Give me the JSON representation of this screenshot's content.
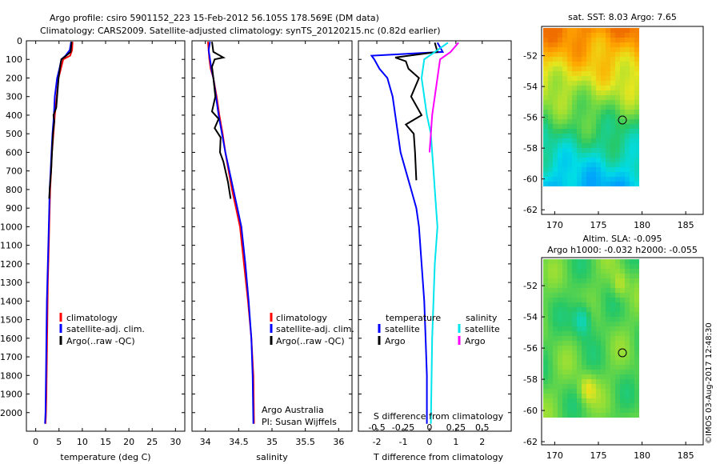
{
  "header": {
    "title_line1": "Argo profile: csiro 5901152_223 15-Feb-2012 56.105S 178.569E (DM data)",
    "title_line2": "Climatology: CARS2009. Satellite-adjusted climatology: synTS_20120215.nc (0.82d earlier)"
  },
  "colors": {
    "climatology": "#ff0000",
    "satellite": "#0000ff",
    "argo": "#000000",
    "salinity_satellite": "#00e5ee",
    "salinity_argo": "#ff00ff"
  },
  "legend_temp": {
    "climatology": "climatology",
    "satellite": "satellite-adj. clim.",
    "argo": "Argo(..raw -QC)"
  },
  "legend_diff": {
    "temperature": "temperature",
    "salinity": "salinity",
    "satellite": "satellite",
    "argo": "Argo"
  },
  "annotation": {
    "line1": "Argo Australia",
    "line2": "PI: Susan Wijffels"
  },
  "map_sst": {
    "title": "sat. SST: 8.03 Argo: 7.65"
  },
  "map_sla": {
    "title_line1": "Altim. SLA: -0.095",
    "title_line2": "Argo h1000: -0.032 h2000: -0.055"
  },
  "watermark": "©IMOS 03-Aug-2017 12:48:30",
  "chart_data": [
    {
      "type": "line",
      "xlabel": "temperature (deg C)",
      "ylabel": "",
      "xlim": [
        -2,
        32
      ],
      "ylim": [
        2100,
        0
      ],
      "xticks": [
        0,
        5,
        10,
        15,
        20,
        25,
        30
      ],
      "yticks": [
        0,
        100,
        200,
        300,
        400,
        500,
        600,
        700,
        800,
        900,
        1000,
        1100,
        1200,
        1300,
        1400,
        1500,
        1600,
        1700,
        1800,
        1900,
        2000
      ],
      "series": [
        {
          "name": "climatology",
          "color": "#ff0000",
          "x": [
            7.9,
            7.8,
            7.4,
            5.9,
            5.4,
            4.9,
            4.5,
            4.1,
            3.8,
            3.5,
            3.3,
            3.1,
            2.9,
            2.8,
            2.6,
            2.5,
            2.4,
            2.3,
            2.2,
            2.1
          ],
          "y": [
            5,
            50,
            80,
            100,
            150,
            200,
            300,
            400,
            500,
            600,
            700,
            800,
            1000,
            1100,
            1300,
            1500,
            1700,
            1900,
            2000,
            2060
          ]
        },
        {
          "name": "satellite-adj. clim.",
          "color": "#0000ff",
          "x": [
            7.6,
            7.3,
            6.4,
            5.5,
            5.1,
            4.6,
            4.1,
            3.9,
            3.6,
            3.4,
            3.2,
            3.0,
            2.8,
            2.6,
            2.4,
            2.3,
            2.2,
            2.1,
            2.0
          ],
          "y": [
            5,
            50,
            80,
            100,
            150,
            200,
            300,
            400,
            500,
            600,
            700,
            800,
            1000,
            1200,
            1400,
            1600,
            1800,
            2000,
            2060
          ]
        },
        {
          "name": "Argo(..raw -QC)",
          "color": "#000000",
          "x": [
            7.7,
            7.5,
            6.3,
            5.5,
            5.3,
            4.9,
            4.6,
            4.4,
            3.8,
            4.0,
            3.7,
            3.5,
            3.3,
            3.0,
            2.9
          ],
          "y": [
            5,
            60,
            85,
            100,
            130,
            200,
            300,
            360,
            400,
            430,
            500,
            600,
            700,
            800,
            850
          ]
        }
      ]
    },
    {
      "type": "line",
      "xlabel": "salinity",
      "ylabel": "",
      "xlim": [
        33.8,
        36.2
      ],
      "ylim": [
        2100,
        0
      ],
      "xticks": [
        34,
        34.5,
        35,
        35.5,
        36
      ],
      "series": [
        {
          "name": "climatology",
          "color": "#ff0000",
          "x": [
            34.04,
            34.05,
            34.06,
            34.08,
            34.12,
            34.17,
            34.21,
            34.26,
            34.3,
            34.35,
            34.4,
            34.46,
            34.52,
            34.58,
            34.64,
            34.69,
            34.72,
            34.73
          ],
          "y": [
            5,
            50,
            100,
            150,
            200,
            300,
            400,
            500,
            600,
            700,
            800,
            900,
            1000,
            1200,
            1400,
            1600,
            1800,
            2060
          ]
        },
        {
          "name": "satellite-adj. clim.",
          "color": "#0000ff",
          "x": [
            34.07,
            34.05,
            34.07,
            34.09,
            34.12,
            34.16,
            34.2,
            34.25,
            34.3,
            34.36,
            34.42,
            34.48,
            34.54,
            34.6,
            34.65,
            34.69,
            34.71,
            34.72
          ],
          "y": [
            5,
            50,
            100,
            150,
            200,
            300,
            400,
            500,
            600,
            700,
            800,
            900,
            1000,
            1200,
            1400,
            1600,
            1800,
            2060
          ]
        },
        {
          "name": "Argo(..raw -QC)",
          "color": "#000000",
          "x": [
            34.1,
            34.12,
            34.27,
            34.14,
            34.1,
            34.12,
            34.15,
            34.1,
            34.2,
            34.14,
            34.23,
            34.22,
            34.27,
            34.34,
            34.38
          ],
          "y": [
            5,
            60,
            90,
            100,
            140,
            200,
            300,
            380,
            420,
            470,
            520,
            600,
            650,
            760,
            850
          ]
        }
      ]
    },
    {
      "type": "line",
      "title": "S difference from climatology",
      "xlabel": "T difference from climatology",
      "xlim": [
        -2.7,
        3.1
      ],
      "ylim": [
        2100,
        0
      ],
      "xticks": [
        -2,
        -1,
        0,
        1,
        2
      ],
      "secondary_xticks": [
        "-0.5",
        "-0.25",
        "0",
        "0.25",
        "0.5"
      ],
      "series": [
        {
          "name": "temperature satellite",
          "color": "#0000ff",
          "x": [
            0.3,
            0.5,
            -2.2,
            -2.1,
            -1.9,
            -1.6,
            -1.4,
            -1.3,
            -1.2,
            -1.1,
            -0.9,
            -0.7,
            -0.5,
            -0.4,
            -0.3,
            -0.2,
            -0.15,
            -0.1,
            -0.1
          ],
          "y": [
            10,
            60,
            80,
            100,
            150,
            200,
            300,
            400,
            500,
            600,
            700,
            800,
            900,
            1000,
            1200,
            1400,
            1600,
            1800,
            2060
          ]
        },
        {
          "name": "temperature Argo",
          "color": "#000000",
          "x": [
            0.2,
            0.3,
            -1.3,
            -0.9,
            -0.8,
            -0.4,
            -0.7,
            -0.3,
            -0.9,
            -0.6,
            -0.55,
            -0.5
          ],
          "y": [
            10,
            60,
            90,
            110,
            150,
            200,
            300,
            400,
            450,
            500,
            600,
            750
          ]
        },
        {
          "name": "salinity satellite",
          "color": "#00e5ee",
          "x": [
            0.7,
            0.2,
            -0.2,
            -0.3,
            -0.2,
            -0.1,
            0.05,
            0.1,
            0.15,
            0.2,
            0.25,
            0.3,
            0.2,
            0.1,
            0.05
          ],
          "y": [
            10,
            60,
            100,
            200,
            300,
            400,
            500,
            600,
            700,
            800,
            900,
            1000,
            1200,
            1600,
            2060
          ]
        },
        {
          "name": "salinity Argo",
          "color": "#ff00ff",
          "x": [
            1.1,
            0.8,
            0.4,
            0.3,
            0.2,
            0.1,
            0.05,
            0.0
          ],
          "y": [
            10,
            60,
            100,
            200,
            300,
            400,
            500,
            600
          ]
        }
      ]
    }
  ]
}
